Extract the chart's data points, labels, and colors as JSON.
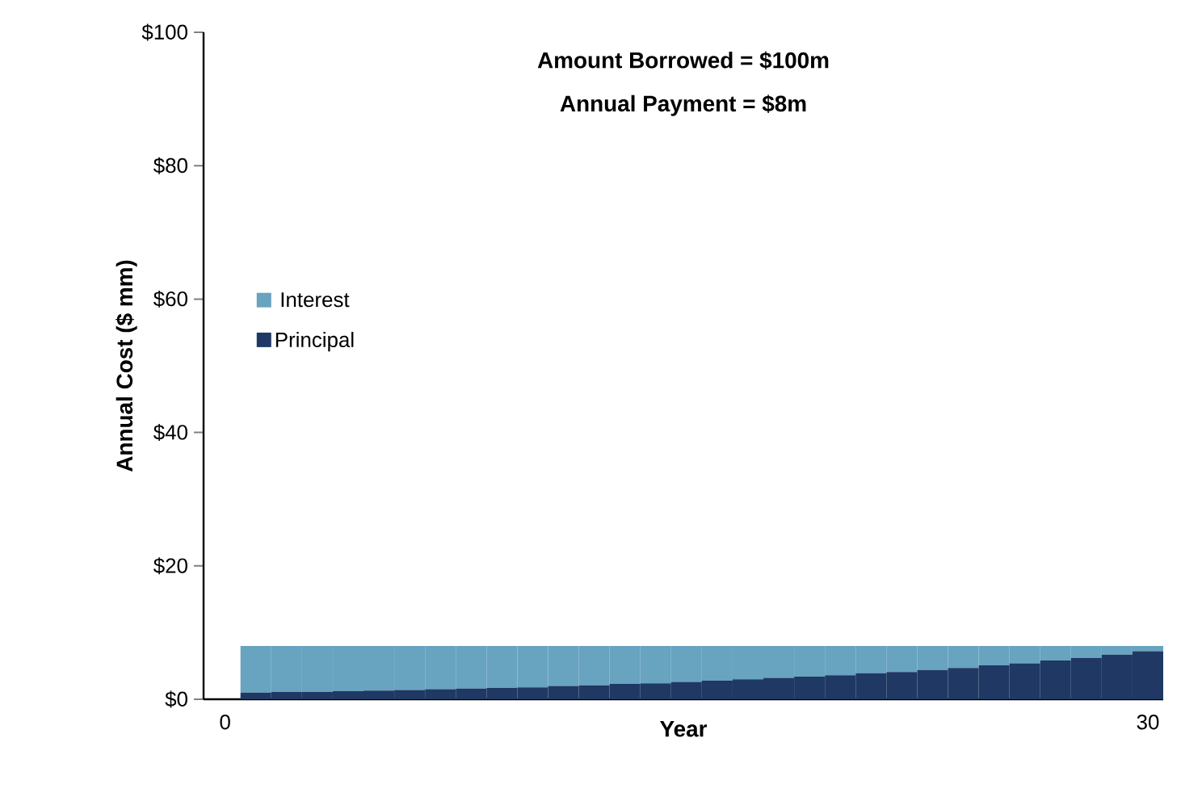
{
  "chart_data": {
    "type": "bar",
    "title": "Amount Borrowed = $100m",
    "subtitle": "Annual Payment = $8m",
    "xlabel": "Year",
    "ylabel": "Annual Cost ($ mm)",
    "stacked": true,
    "legend": "left",
    "x": [
      1,
      2,
      3,
      4,
      5,
      6,
      7,
      8,
      9,
      10,
      11,
      12,
      13,
      14,
      15,
      16,
      17,
      18,
      19,
      20,
      21,
      22,
      23,
      24,
      25,
      26,
      27,
      28,
      29,
      30
    ],
    "xlim": [
      -0.7,
      30.5
    ],
    "xticks": [
      0,
      30
    ],
    "ylim": [
      0,
      100
    ],
    "yticks": [
      {
        "value": 0,
        "label": "$0"
      },
      {
        "value": 20,
        "label": "$20"
      },
      {
        "value": 40,
        "label": "$40"
      },
      {
        "value": 60,
        "label": "$60"
      },
      {
        "value": 80,
        "label": "$80"
      },
      {
        "value": 100,
        "label": "$100"
      }
    ],
    "series": [
      {
        "name": "Principal",
        "color": "#1f3864",
        "values": [
          1.0,
          1.1,
          1.1,
          1.2,
          1.3,
          1.4,
          1.5,
          1.6,
          1.7,
          1.8,
          2.0,
          2.1,
          2.3,
          2.4,
          2.6,
          2.8,
          3.0,
          3.2,
          3.4,
          3.6,
          3.9,
          4.1,
          4.4,
          4.7,
          5.1,
          5.4,
          5.8,
          6.2,
          6.7,
          7.2
        ]
      },
      {
        "name": "Interest",
        "color": "#68a3c0",
        "values": [
          7.0,
          6.9,
          6.9,
          6.8,
          6.7,
          6.6,
          6.5,
          6.4,
          6.3,
          6.2,
          6.0,
          5.9,
          5.7,
          5.6,
          5.4,
          5.2,
          5.0,
          4.8,
          4.6,
          4.4,
          4.1,
          3.9,
          3.6,
          3.3,
          2.9,
          2.6,
          2.2,
          1.8,
          1.3,
          0.8
        ]
      }
    ]
  }
}
